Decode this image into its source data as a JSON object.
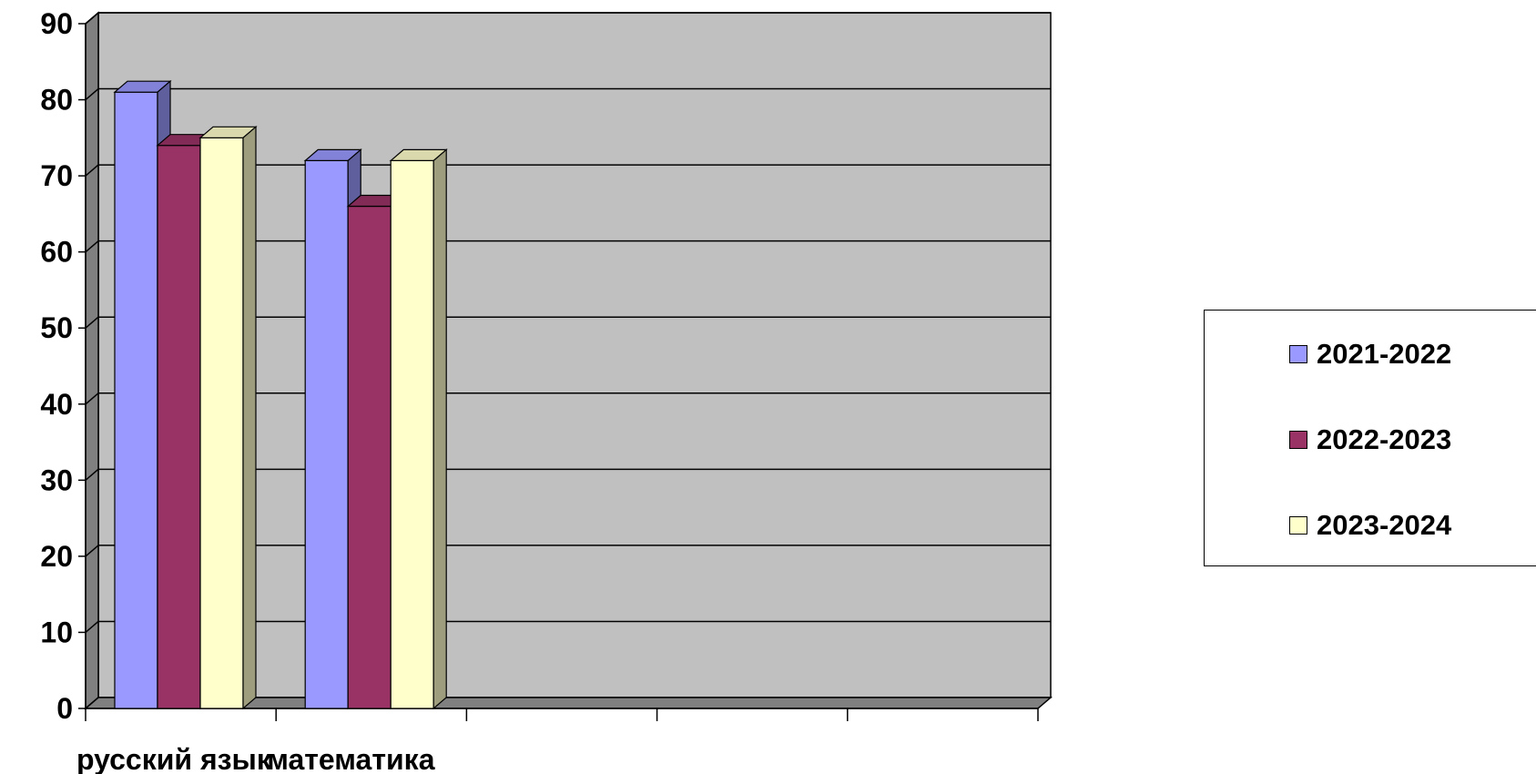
{
  "chart_data": {
    "type": "bar",
    "categories": [
      "русский язык",
      "математика",
      "",
      "",
      ""
    ],
    "series": [
      {
        "name": "2021-2022",
        "color": "#9999FF",
        "values": [
          81,
          72,
          null,
          null,
          null
        ]
      },
      {
        "name": "2022-2023",
        "color": "#993366",
        "values": [
          74,
          66,
          null,
          null,
          null
        ]
      },
      {
        "name": "2023-2024",
        "color": "#FFFFCC",
        "values": [
          75,
          72,
          null,
          null,
          null
        ]
      }
    ],
    "y_ticks": [
      "0",
      "10",
      "20",
      "30",
      "40",
      "50",
      "60",
      "70",
      "80",
      "90"
    ],
    "ylim": [
      0,
      90
    ],
    "grid": true,
    "legend_position": "right",
    "plot_background": "#C0C0C0"
  }
}
